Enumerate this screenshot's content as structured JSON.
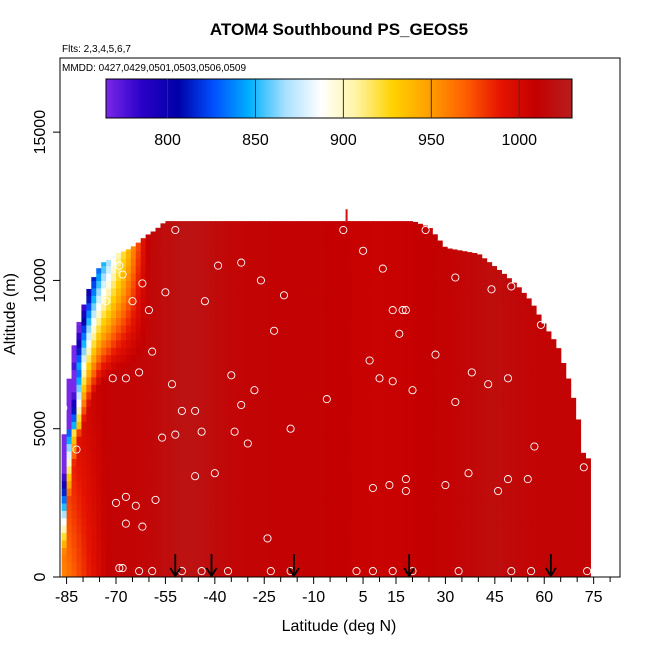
{
  "chart_data": {
    "type": "heatmap",
    "title": "ATOM4 Southbound PS_GEOS5",
    "subtitle_flights": "Flts: 2,3,4,5,6,7",
    "subtitle_dates": "MMDD: 0427,0429,0501,0503,0506,0509",
    "xlabel": "Latitude (deg N)",
    "ylabel": "Altitude (m)",
    "xlim": [
      -87,
      83
    ],
    "ylim": [
      0,
      17500
    ],
    "x_ticks": [
      -85,
      -70,
      -55,
      -40,
      -25,
      -10,
      5,
      15,
      30,
      45,
      60,
      75
    ],
    "x_tick_labels": [
      "-85",
      "-70",
      "-55",
      "-40",
      "-25",
      "-10",
      "5",
      "15",
      "30",
      "45",
      "60",
      "75"
    ],
    "y_ticks": [
      0,
      5000,
      10000,
      15000
    ],
    "y_tick_labels": [
      "0",
      "5000",
      "10000",
      "15000"
    ],
    "colorbar": {
      "range": [
        765,
        1030
      ],
      "ticks": [
        800,
        850,
        900,
        950,
        1000
      ],
      "tick_labels": [
        "800",
        "850",
        "900",
        "950",
        "1000"
      ],
      "stops": [
        "#7a28e8",
        "#2a00c8",
        "#0000a8",
        "#0050ff",
        "#00b0ff",
        "#a8e0ff",
        "#ffffff",
        "#fff3a0",
        "#ffd200",
        "#ffa000",
        "#ff6000",
        "#e61400",
        "#c40000",
        "#b81e1e"
      ]
    },
    "field": {
      "description": "mean curtain value by latitude and altitude",
      "top_altitude_profile": {
        "lat": [
          -86,
          -84,
          -82,
          -80,
          -78,
          -76,
          -74,
          -72,
          -70,
          -67,
          -64,
          -61,
          -58,
          -55,
          -50,
          -40,
          -20,
          0,
          20,
          25,
          30,
          40,
          48,
          52,
          56,
          60,
          64,
          67,
          70,
          72
        ],
        "alt": [
          4500,
          7000,
          8300,
          9100,
          9800,
          10300,
          10600,
          10700,
          10900,
          11000,
          11200,
          11500,
          11700,
          12000,
          12000,
          12000,
          12000,
          12000,
          12000,
          11800,
          11100,
          10900,
          10200,
          9800,
          9300,
          8500,
          7800,
          6800,
          5500,
          4000
        ]
      }
    },
    "flight_markers_lat": [
      -52,
      -41,
      -16,
      19,
      62
    ],
    "sample_points": [
      {
        "x": -52,
        "y": 11700
      },
      {
        "x": -39,
        "y": 10500
      },
      {
        "x": -32,
        "y": 10600
      },
      {
        "x": -26,
        "y": 10000
      },
      {
        "x": -19,
        "y": 9500
      },
      {
        "x": -1,
        "y": 11700
      },
      {
        "x": 5,
        "y": 11000
      },
      {
        "x": 11,
        "y": 10400
      },
      {
        "x": 24,
        "y": 11700
      },
      {
        "x": 33,
        "y": 10100
      },
      {
        "x": 44,
        "y": 9700
      },
      {
        "x": 50,
        "y": 9800
      },
      {
        "x": 56,
        "y": 9700
      },
      {
        "x": -67,
        "y": 11400
      },
      {
        "x": -69,
        "y": 10500
      },
      {
        "x": -73,
        "y": 9300
      },
      {
        "x": -62,
        "y": 9900
      },
      {
        "x": -55,
        "y": 9600
      },
      {
        "x": -43,
        "y": 9300
      },
      {
        "x": -68,
        "y": 10200
      },
      {
        "x": -85,
        "y": 9500
      },
      {
        "x": -60,
        "y": 9000
      },
      {
        "x": -65,
        "y": 9300
      },
      {
        "x": -22,
        "y": 8300
      },
      {
        "x": 14,
        "y": 9000
      },
      {
        "x": 17,
        "y": 9000
      },
      {
        "x": 16,
        "y": 8200
      },
      {
        "x": 18,
        "y": 9000
      },
      {
        "x": 59,
        "y": 8500
      },
      {
        "x": -59,
        "y": 7600
      },
      {
        "x": 7,
        "y": 7300
      },
      {
        "x": 27,
        "y": 7500
      },
      {
        "x": -63,
        "y": 6900
      },
      {
        "x": -67,
        "y": 6700
      },
      {
        "x": -71,
        "y": 6700
      },
      {
        "x": -53,
        "y": 6500
      },
      {
        "x": -35,
        "y": 6800
      },
      {
        "x": -28,
        "y": 6300
      },
      {
        "x": 10,
        "y": 6700
      },
      {
        "x": 14,
        "y": 6600
      },
      {
        "x": 20,
        "y": 6300
      },
      {
        "x": 38,
        "y": 6900
      },
      {
        "x": 43,
        "y": 6500
      },
      {
        "x": 49,
        "y": 6700
      },
      {
        "x": 71,
        "y": 7300
      },
      {
        "x": -50,
        "y": 5600
      },
      {
        "x": -46,
        "y": 5600
      },
      {
        "x": -32,
        "y": 5800
      },
      {
        "x": -6,
        "y": 6000
      },
      {
        "x": 33,
        "y": 5900
      },
      {
        "x": -86,
        "y": 5700
      },
      {
        "x": -56,
        "y": 4700
      },
      {
        "x": -52,
        "y": 4800
      },
      {
        "x": -44,
        "y": 4900
      },
      {
        "x": -34,
        "y": 4900
      },
      {
        "x": -30,
        "y": 4500
      },
      {
        "x": -17,
        "y": 5000
      },
      {
        "x": 57,
        "y": 4400
      },
      {
        "x": -82,
        "y": 4300
      },
      {
        "x": -46,
        "y": 3400
      },
      {
        "x": -40,
        "y": 3500
      },
      {
        "x": 8,
        "y": 3000
      },
      {
        "x": 13,
        "y": 3100
      },
      {
        "x": 18,
        "y": 2900
      },
      {
        "x": 18,
        "y": 3300
      },
      {
        "x": 30,
        "y": 3100
      },
      {
        "x": 37,
        "y": 3500
      },
      {
        "x": 46,
        "y": 2900
      },
      {
        "x": 49,
        "y": 3300
      },
      {
        "x": 55,
        "y": 3300
      },
      {
        "x": 72,
        "y": 3700
      },
      {
        "x": -70,
        "y": 2500
      },
      {
        "x": -67,
        "y": 2700
      },
      {
        "x": -64,
        "y": 2400
      },
      {
        "x": -58,
        "y": 2600
      },
      {
        "x": -67,
        "y": 1800
      },
      {
        "x": -62,
        "y": 1700
      },
      {
        "x": -24,
        "y": 1300
      },
      {
        "x": -69,
        "y": 300
      },
      {
        "x": -68,
        "y": 300
      },
      {
        "x": -63,
        "y": 200
      },
      {
        "x": -59,
        "y": 200
      },
      {
        "x": -50,
        "y": 200
      },
      {
        "x": -44,
        "y": 200
      },
      {
        "x": -36,
        "y": 200
      },
      {
        "x": -23,
        "y": 200
      },
      {
        "x": -17,
        "y": 200
      },
      {
        "x": 3,
        "y": 200
      },
      {
        "x": 8,
        "y": 200
      },
      {
        "x": 14,
        "y": 200
      },
      {
        "x": 20,
        "y": 200
      },
      {
        "x": 34,
        "y": 200
      },
      {
        "x": 50,
        "y": 200
      },
      {
        "x": 56,
        "y": 200
      },
      {
        "x": 73,
        "y": 200
      }
    ]
  }
}
